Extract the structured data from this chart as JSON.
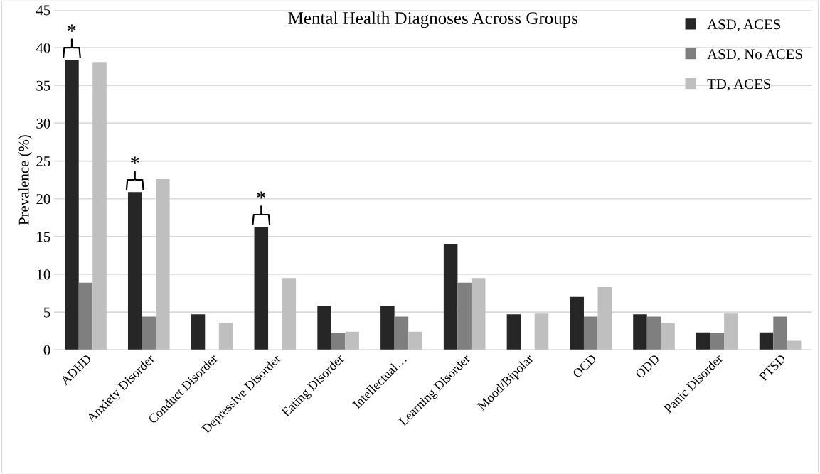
{
  "chart_data": {
    "type": "bar",
    "title": "Mental Health Diagnoses Across Groups",
    "ylabel": "Prevalence (%)",
    "categories": [
      "ADHD",
      "Anxiety Disorder",
      "Conduct Disorder",
      "Depressive Disorder",
      "Eating Disorder",
      "Intellectual…",
      "Learning Disorder",
      "Mood/Bipolar",
      "OCD",
      "ODD",
      "Panic Disorder",
      "PTSD"
    ],
    "series": [
      {
        "name": "ASD, ACES",
        "color": "#262626",
        "values": [
          38.4,
          20.9,
          4.7,
          16.3,
          5.8,
          5.8,
          14.0,
          4.7,
          7.0,
          4.7,
          2.3,
          2.3
        ]
      },
      {
        "name": "ASD, No ACES",
        "color": "#7f7f7f",
        "values": [
          8.9,
          4.4,
          0,
          0,
          2.2,
          4.4,
          8.9,
          0,
          4.4,
          4.4,
          2.2,
          4.4
        ]
      },
      {
        "name": "TD, ACES",
        "color": "#bfbfbf",
        "values": [
          38.1,
          22.6,
          3.6,
          9.5,
          2.4,
          2.4,
          9.5,
          4.8,
          8.3,
          3.6,
          4.8,
          1.2
        ]
      }
    ],
    "ylim": [
      0,
      45
    ],
    "yticks": [
      0,
      5,
      10,
      15,
      20,
      25,
      30,
      35,
      40,
      45
    ],
    "grid": "y",
    "legend": "top right",
    "annotations": [
      "*",
      "*",
      "*"
    ]
  }
}
